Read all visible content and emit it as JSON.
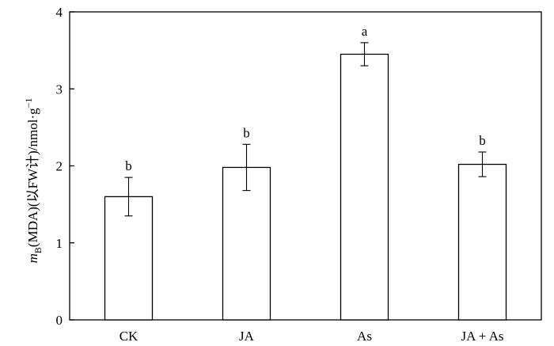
{
  "chart_data": {
    "type": "bar",
    "categories": [
      "CK",
      "JA",
      "As",
      "JA + As"
    ],
    "values": [
      1.6,
      1.98,
      3.45,
      2.02
    ],
    "errors": [
      0.25,
      0.3,
      0.15,
      0.16
    ],
    "data_labels": [
      "b",
      "b",
      "a",
      "b"
    ],
    "ylim": [
      0,
      4
    ],
    "yticks": [
      0,
      1,
      2,
      3,
      4
    ],
    "ylabel": {
      "prefix": "m",
      "subscript": "B",
      "main": "(MDA)(以FW计)/nmol·g",
      "superscript": "−1"
    },
    "xlabel": "",
    "title": "",
    "grid": false,
    "legend": "none"
  }
}
